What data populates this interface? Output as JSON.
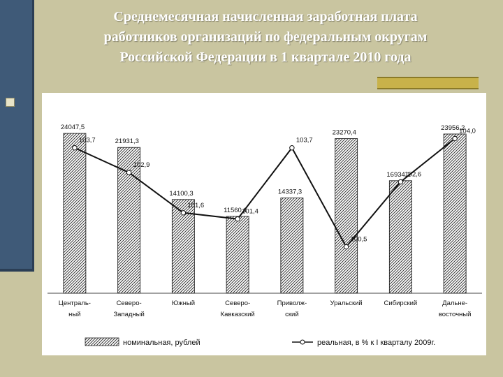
{
  "title_lines": [
    "Среднемесячная начисленная заработная плата",
    "работников организаций по федеральным округам",
    "Российской Федерации в 1 квартале 2010 года"
  ],
  "colors": {
    "background": "#c9c5a0",
    "stripe": "#3f5a78",
    "accent_bar": "#c8b24a",
    "line": "#111111"
  },
  "chart_data": {
    "type": "bar",
    "title": "Среднемесячная начисленная заработная плата работников организаций по федеральным округам Российской Федерации в 1 квартале 2010 года",
    "categories": [
      [
        "Централь-",
        "ный"
      ],
      [
        "Северо-",
        "Западный"
      ],
      [
        "Южный"
      ],
      [
        "Северо-",
        "Кавказский"
      ],
      [
        "Приволж-",
        "ский"
      ],
      [
        "Уральский"
      ],
      [
        "Сибирский"
      ],
      [
        "Дальне-",
        "восточный"
      ]
    ],
    "series": [
      {
        "name": "номинальная, рублей",
        "type": "bar",
        "values": [
          24047.5,
          21931.3,
          14100.3,
          11560.1,
          14337.3,
          23270.4,
          16934.1,
          23956.2
        ],
        "labels": [
          "24047,5",
          "21931,3",
          "14100,3",
          "11560,1",
          "14337,3",
          "23270,4",
          "16934,1",
          "23956,2"
        ]
      },
      {
        "name": "реальная, в % к I кварталу 2009г.",
        "type": "line",
        "values": [
          103.7,
          102.9,
          101.6,
          101.4,
          103.7,
          100.5,
          102.6,
          104.0
        ],
        "labels": [
          "103,7",
          "102,9",
          "101,6",
          "101,4",
          "103,7",
          "100,5",
          "102,6",
          "104,0"
        ]
      }
    ],
    "bar_axis_range": [
      0,
      27000
    ],
    "line_axis_range": [
      99.0,
      104.8
    ],
    "grid": false,
    "legend_position": "bottom"
  }
}
